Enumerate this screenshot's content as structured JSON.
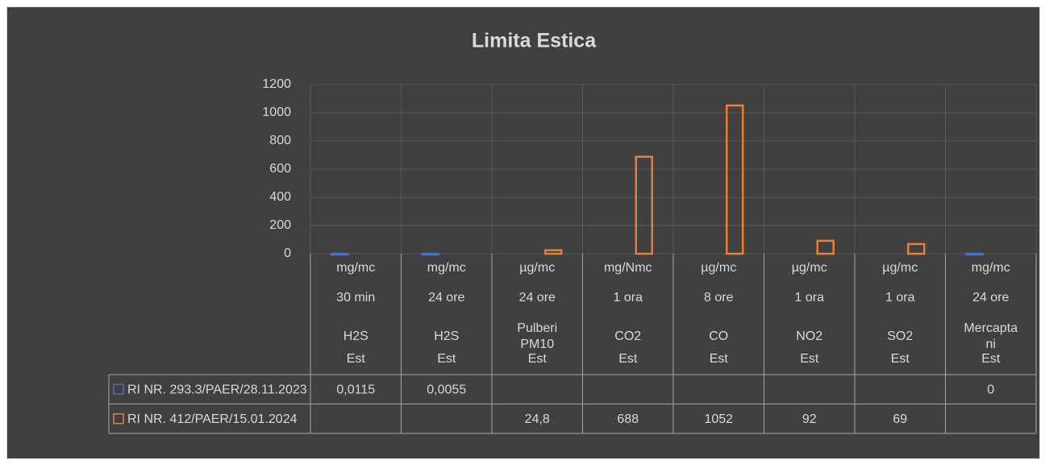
{
  "chart_data": {
    "type": "bar",
    "title": "Limita Estica",
    "categories": [
      [
        "mg/mc",
        "30 min",
        "H2S",
        "Est"
      ],
      [
        "mg/mc",
        "24 ore",
        "H2S",
        "Est"
      ],
      [
        "µg/mc",
        "24 ore",
        "Pulberi PM10",
        "Est"
      ],
      [
        "mg/Nmc",
        "1 ora",
        "CO2",
        "Est"
      ],
      [
        "µg/mc",
        "8 ore",
        "CO",
        "Est"
      ],
      [
        "µg/mc",
        "1 ora",
        "NO2",
        "Est"
      ],
      [
        "µg/mc",
        "1 ora",
        "SO2",
        "Est"
      ],
      [
        "mg/mc",
        "24 ore",
        "Mercaptani",
        "Est"
      ]
    ],
    "series": [
      {
        "name": "RI NR. 293.3/PAER/28.11.2023",
        "color": "#4472c4",
        "values": [
          0.0115,
          0.0055,
          null,
          null,
          null,
          null,
          null,
          0
        ],
        "value_labels": [
          "0,0115",
          "0,0055",
          null,
          null,
          null,
          null,
          null,
          "0"
        ]
      },
      {
        "name": "RI NR. 412/PAER/15.01.2024",
        "color": "#ed7d31",
        "values": [
          null,
          null,
          24.8,
          688,
          1052,
          92,
          69,
          null
        ],
        "value_labels": [
          null,
          null,
          "24,8",
          "688",
          "1052",
          "92",
          "69",
          null
        ]
      }
    ],
    "ylim": [
      0,
      1200
    ],
    "yticks": [
      0,
      200,
      400,
      600,
      800,
      1000,
      1200
    ],
    "grid": true,
    "data_table": true
  }
}
